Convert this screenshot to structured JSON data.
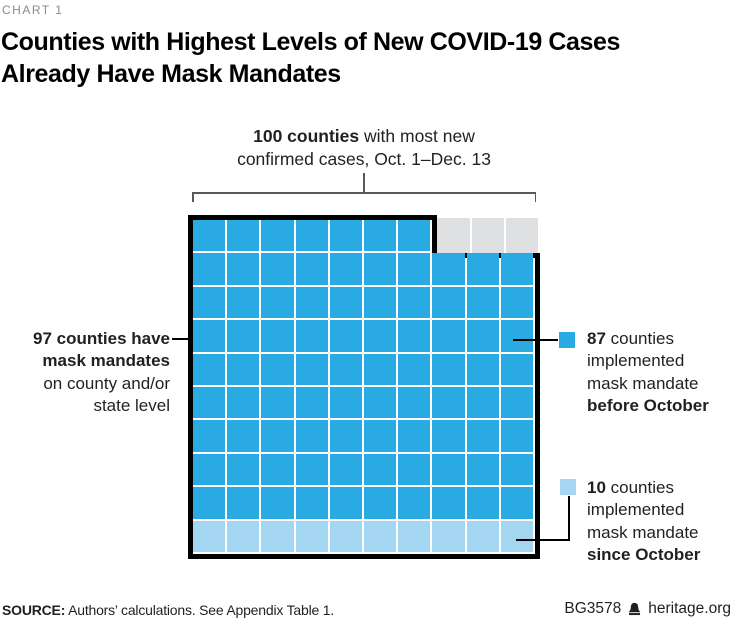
{
  "kicker": "CHART 1",
  "title": {
    "line1": "Counties with Highest Levels of New COVID-19 Cases",
    "line2": "Already Have Mask Mandates"
  },
  "bracket": {
    "bold": "100 counties",
    "after": " with most new",
    "line2": "confirmed cases, Oct. 1–Dec. 13"
  },
  "left_label": {
    "bold_line1": "97 counties have",
    "bold_line2": "mask mandates",
    "line3": "on county and/or",
    "line4": "state level"
  },
  "legend": {
    "before": {
      "num": "87",
      "rest": " counties",
      "line2": "implemented",
      "line3": "mask mandate",
      "bold_line4": "before October",
      "color": "#29aae2"
    },
    "since": {
      "num": "10",
      "rest": " counties",
      "line2": "implemented",
      "line3": "mask mandate",
      "bold_line4": "since October",
      "color": "#a4d6f1"
    }
  },
  "footer": {
    "source_label": "SOURCE:",
    "source_text": " Authors’ calculations. See Appendix Table 1.",
    "report_id": "BG3578",
    "site": "heritage.org",
    "logo": "liberty-bell-icon"
  },
  "chart_data": {
    "type": "waffle",
    "rows": 10,
    "cols": 10,
    "total_units": 100,
    "unit": "counties",
    "title": "Counties with Highest Levels of New COVID-19 Cases Already Have Mask Mandates",
    "bracket_annotation": "100 counties with most new confirmed cases, Oct. 1–Dec. 13",
    "outline_annotation": "97 counties have mask mandates on county and/or state level",
    "outlined_value": 97,
    "series": [
      {
        "name": "implemented mask mandate before October",
        "value": 87,
        "color": "#29aae2"
      },
      {
        "name": "implemented mask mandate since October",
        "value": 10,
        "color": "#a4d6f1"
      },
      {
        "name": "no mask mandate",
        "value": 3,
        "color": "#dfe0e1"
      }
    ],
    "layout_notes": "10x10 grid; 3 gray no-mandate cells at top-right outside black outline; bottom row of 10 light-blue since-October cells; remaining 87 blue"
  },
  "colors": {
    "blue": "#29aae2",
    "light_blue": "#a4d6f1",
    "gray": "#dfe0e1",
    "outline": "#000000",
    "bracket": "#58595b",
    "kicker": "#8b8b8b"
  }
}
